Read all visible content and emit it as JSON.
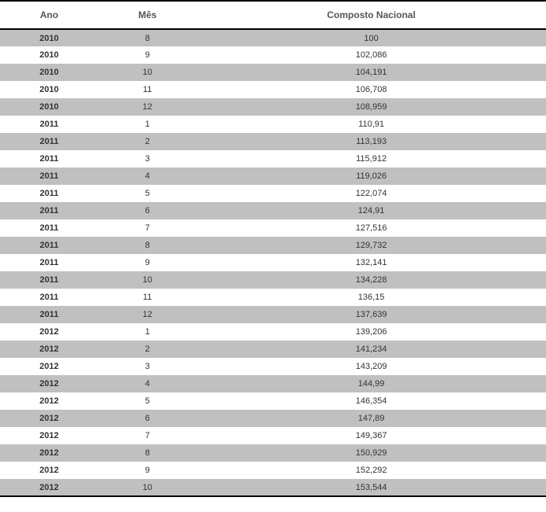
{
  "table": {
    "type": "table",
    "background_color": "#ffffff",
    "border_color": "#000000",
    "row_colors": {
      "even": "#c0c0c0",
      "odd": "#ffffff"
    },
    "header_font_color": "#555555",
    "header_font_size": 12,
    "body_font_color": "#333333",
    "body_font_size": 11,
    "columns": [
      {
        "label": "Ano",
        "width": 18,
        "align": "center",
        "bold": true
      },
      {
        "label": "Mês",
        "width": 18,
        "align": "center",
        "bold": false
      },
      {
        "label": "Composto Nacional",
        "width": 64,
        "align": "center",
        "bold": false
      }
    ],
    "rows": [
      [
        "2010",
        "8",
        "100"
      ],
      [
        "2010",
        "9",
        "102,086"
      ],
      [
        "2010",
        "10",
        "104,191"
      ],
      [
        "2010",
        "11",
        "106,708"
      ],
      [
        "2010",
        "12",
        "108,959"
      ],
      [
        "2011",
        "1",
        "110,91"
      ],
      [
        "2011",
        "2",
        "113,193"
      ],
      [
        "2011",
        "3",
        "115,912"
      ],
      [
        "2011",
        "4",
        "119,026"
      ],
      [
        "2011",
        "5",
        "122,074"
      ],
      [
        "2011",
        "6",
        "124,91"
      ],
      [
        "2011",
        "7",
        "127,516"
      ],
      [
        "2011",
        "8",
        "129,732"
      ],
      [
        "2011",
        "9",
        "132,141"
      ],
      [
        "2011",
        "10",
        "134,228"
      ],
      [
        "2011",
        "11",
        "136,15"
      ],
      [
        "2011",
        "12",
        "137,639"
      ],
      [
        "2012",
        "1",
        "139,206"
      ],
      [
        "2012",
        "2",
        "141,234"
      ],
      [
        "2012",
        "3",
        "143,209"
      ],
      [
        "2012",
        "4",
        "144,99"
      ],
      [
        "2012",
        "5",
        "146,354"
      ],
      [
        "2012",
        "6",
        "147,89"
      ],
      [
        "2012",
        "7",
        "149,367"
      ],
      [
        "2012",
        "8",
        "150,929"
      ],
      [
        "2012",
        "9",
        "152,292"
      ],
      [
        "2012",
        "10",
        "153,544"
      ]
    ]
  }
}
